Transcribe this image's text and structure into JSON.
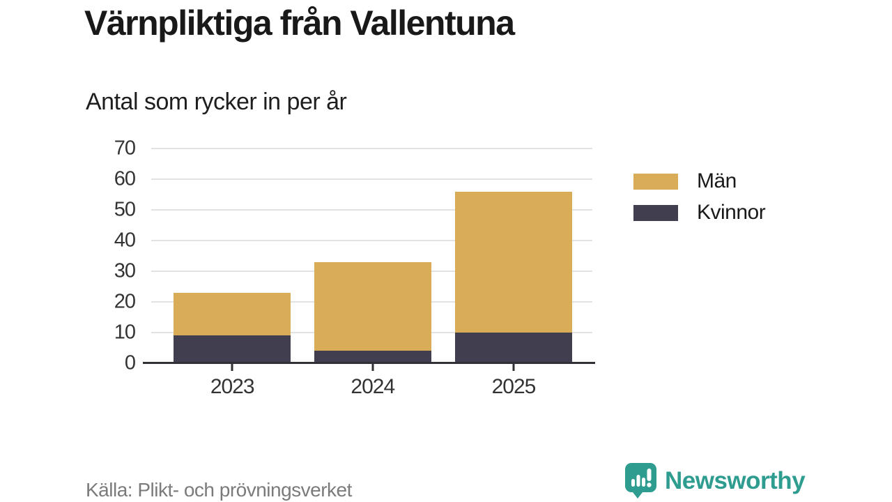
{
  "chart_data": {
    "type": "bar",
    "stacked": true,
    "title": "Värnpliktiga från Vallentuna",
    "subtitle": "Antal som rycker in per år",
    "categories": [
      "2023",
      "2024",
      "2025"
    ],
    "series": [
      {
        "name": "Män",
        "color": "#d9ac57",
        "values": [
          14,
          29,
          46
        ]
      },
      {
        "name": "Kvinnor",
        "color": "#413f4f",
        "values": [
          9,
          4,
          10
        ]
      }
    ],
    "stack_bottom_to_top": [
      "Kvinnor",
      "Män"
    ],
    "stacked_totals": [
      23,
      33,
      56
    ],
    "ylim": [
      0,
      70
    ],
    "yticks": [
      0,
      10,
      20,
      30,
      40,
      50,
      60,
      70
    ],
    "grid": true,
    "legend_position": "right-top"
  },
  "legend": {
    "items": [
      {
        "label": "Män",
        "color": "#d9ac57"
      },
      {
        "label": "Kvinnor",
        "color": "#413f4f"
      }
    ]
  },
  "footer": {
    "source": "Källa: Plikt- och prövningsverket",
    "brand": "Newsworthy",
    "brand_color": "#2f9c90"
  },
  "colors": {
    "men_bar": "#d9ac57",
    "women_bar": "#413f4f",
    "gridline": "#e2e2e2",
    "axis": "#313036",
    "tick_label": "#333333",
    "text": "#191919",
    "source_text": "#7b7b7b",
    "brand_teal": "#2f9c90"
  }
}
